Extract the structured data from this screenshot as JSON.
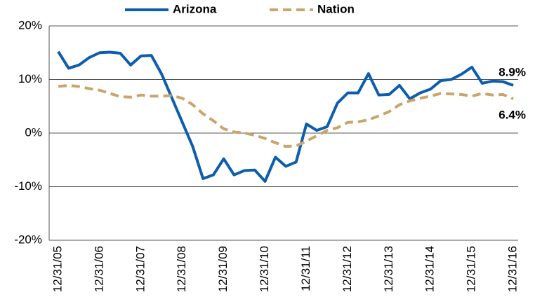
{
  "chart_data": {
    "type": "line",
    "categories": [
      "12/31/05",
      null,
      null,
      null,
      "12/31/06",
      null,
      null,
      null,
      "12/31/07",
      null,
      null,
      null,
      "12/31/08",
      null,
      null,
      null,
      "12/31/09",
      null,
      null,
      null,
      "12/31/10",
      null,
      null,
      null,
      "12/31/11",
      null,
      null,
      null,
      "12/31/12",
      null,
      null,
      null,
      "12/31/13",
      null,
      null,
      null,
      "12/31/14",
      null,
      null,
      null,
      "12/31/15",
      null,
      null,
      null,
      "12/31/16"
    ],
    "series": [
      {
        "name": "Arizona",
        "color": "#0c5dae",
        "linestyle": "solid",
        "values": [
          15.2,
          12.1,
          12.7,
          14.1,
          15.0,
          15.1,
          14.9,
          12.7,
          14.4,
          14.5,
          11.0,
          6.5,
          2.0,
          -2.5,
          -8.5,
          -7.8,
          -4.8,
          -7.8,
          -7.0,
          -6.9,
          -9.0,
          -4.5,
          -6.2,
          -5.4,
          1.7,
          0.5,
          1.2,
          5.6,
          7.5,
          7.5,
          11.1,
          7.1,
          7.2,
          8.9,
          6.4,
          7.5,
          8.2,
          9.8,
          10.0,
          11.0,
          12.3,
          9.3,
          9.7,
          9.6,
          8.9
        ],
        "value_labels": [
          null,
          null,
          null,
          null,
          null,
          null,
          null,
          null,
          null,
          null,
          null,
          null,
          null,
          null,
          null,
          null,
          null,
          null,
          null,
          null,
          null,
          null,
          null,
          null,
          null,
          null,
          null,
          null,
          null,
          null,
          null,
          null,
          null,
          null,
          null,
          null,
          null,
          null,
          null,
          null,
          null,
          null,
          null,
          null,
          "8.9%"
        ]
      },
      {
        "name": "Nation",
        "color": "#c9a56b",
        "linestyle": "dashed",
        "values": [
          8.7,
          8.9,
          8.7,
          8.3,
          8.0,
          7.4,
          6.8,
          6.7,
          7.1,
          6.9,
          6.9,
          7.0,
          6.5,
          5.3,
          3.6,
          2.3,
          0.8,
          0.2,
          0.0,
          -0.4,
          -1.0,
          -1.8,
          -2.5,
          -2.4,
          -1.5,
          -0.5,
          0.5,
          1.0,
          2.0,
          2.1,
          2.5,
          3.2,
          4.0,
          5.3,
          6.0,
          6.5,
          6.9,
          7.4,
          7.3,
          7.2,
          6.9,
          7.4,
          7.1,
          7.2,
          6.4
        ],
        "value_labels": [
          null,
          null,
          null,
          null,
          null,
          null,
          null,
          null,
          null,
          null,
          null,
          null,
          null,
          null,
          null,
          null,
          null,
          null,
          null,
          null,
          null,
          null,
          null,
          null,
          null,
          null,
          null,
          null,
          null,
          null,
          null,
          null,
          null,
          null,
          null,
          null,
          null,
          null,
          null,
          null,
          null,
          null,
          null,
          null,
          "6.4%"
        ]
      }
    ],
    "ylim": [
      -20,
      20
    ],
    "yticks": [
      {
        "value": -20,
        "label": "-20%"
      },
      {
        "value": -10,
        "label": "-10%"
      },
      {
        "value": 0,
        "label": "0%"
      },
      {
        "value": 10,
        "label": "10%"
      },
      {
        "value": 20,
        "label": "20%"
      }
    ],
    "grid": true,
    "legend": "top"
  }
}
